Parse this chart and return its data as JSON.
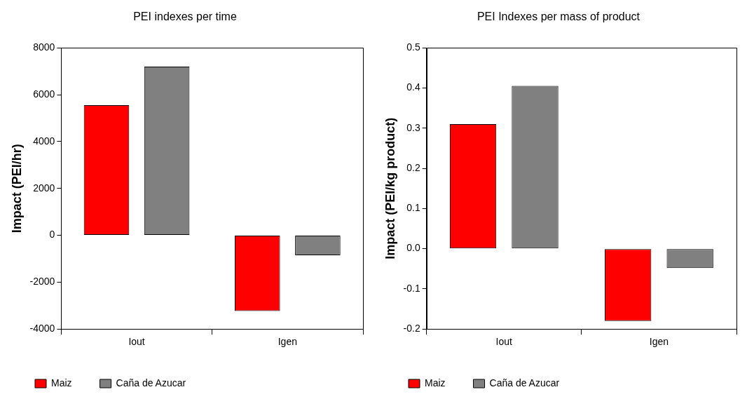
{
  "chart_data": [
    {
      "type": "bar",
      "title": "PEI indexes per time",
      "ylabel": "Impact (PEI/hr)",
      "categories": [
        "Iout",
        "Igen"
      ],
      "series": [
        {
          "name": "Maiz",
          "color": "#ff0000",
          "values": [
            5550,
            -3230
          ]
        },
        {
          "name": "Caña de Azucar",
          "color": "#808080",
          "values": [
            7200,
            -850
          ]
        }
      ],
      "ylim": [
        -4000,
        8000
      ],
      "yticks": [
        -4000,
        -2000,
        0,
        2000,
        4000,
        6000,
        8000
      ],
      "grid": false,
      "legend": "bottom"
    },
    {
      "type": "bar",
      "title": "PEI Indexes per mass of product",
      "ylabel": "Impact (PEI/kg product)",
      "categories": [
        "Iout",
        "Igen"
      ],
      "series": [
        {
          "name": "Maiz",
          "color": "#ff0000",
          "values": [
            0.31,
            -0.18
          ]
        },
        {
          "name": "Caña de Azucar",
          "color": "#808080",
          "values": [
            0.405,
            -0.048
          ]
        }
      ],
      "ylim": [
        -0.2,
        0.5
      ],
      "yticks": [
        {
          "value": -0.2,
          "label": "-0.2"
        },
        {
          "value": -0.1,
          "label": "-0.1"
        },
        {
          "value": 0,
          "label": "0.0"
        },
        {
          "value": 0.1,
          "label": "0.1"
        },
        {
          "value": 0.2,
          "label": "0.2"
        },
        {
          "value": 0.3,
          "label": "0.3"
        },
        {
          "value": 0.4,
          "label": "0.4"
        },
        {
          "value": 0.5,
          "label": "0.5"
        }
      ],
      "grid": false,
      "legend": "bottom"
    }
  ]
}
